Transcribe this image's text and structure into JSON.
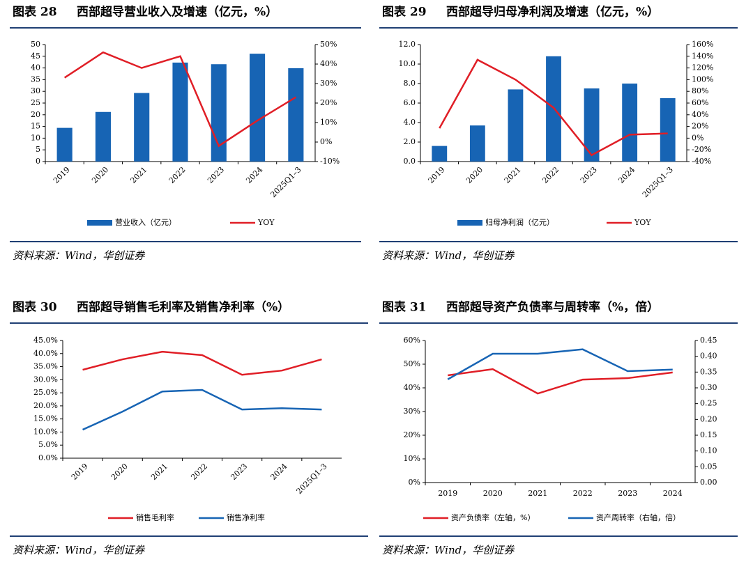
{
  "chart_data": [
    {
      "type": "bar",
      "label": "图表 28",
      "title": "西部超导营业收入及增速（亿元，%）",
      "categories": [
        "2019",
        "2020",
        "2021",
        "2022",
        "2023",
        "2024",
        "2025Q1–3"
      ],
      "series": [
        {
          "name": "营业收入（亿元）",
          "type": "bar",
          "color": "#1764b4",
          "values": [
            14.4,
            21.2,
            29.3,
            42.3,
            41.6,
            46.1,
            39.9
          ]
        },
        {
          "name": "YOY",
          "type": "line",
          "axis": "y2",
          "color": "#e01e26",
          "values": [
            33,
            46,
            38,
            44,
            -2,
            11,
            23
          ]
        }
      ],
      "ylim": [
        0,
        50
      ],
      "yticks": [
        0,
        5,
        10,
        15,
        20,
        25,
        30,
        35,
        40,
        45,
        50
      ],
      "y2lim": [
        -10,
        50
      ],
      "y2ticks": [
        {
          "value": -10,
          "label": "-10%"
        },
        {
          "value": 0,
          "label": "0%"
        },
        {
          "value": 10,
          "label": "10%"
        },
        {
          "value": 20,
          "label": "20%"
        },
        {
          "value": 30,
          "label": "30%"
        },
        {
          "value": 40,
          "label": "40%"
        },
        {
          "value": 50,
          "label": "50%"
        }
      ],
      "source": "资料来源：Wind，华创证券"
    },
    {
      "type": "bar",
      "label": "图表 29",
      "title": "西部超导归母净利润及增速（亿元，%）",
      "categories": [
        "2019",
        "2020",
        "2021",
        "2022",
        "2023",
        "2024",
        "2025Q1–3"
      ],
      "series": [
        {
          "name": "归母净利润（亿元）",
          "type": "bar",
          "color": "#1764b4",
          "values": [
            1.6,
            3.7,
            7.4,
            10.8,
            7.5,
            8.0,
            6.5
          ]
        },
        {
          "name": "YOY",
          "type": "line",
          "axis": "y2",
          "color": "#e01e26",
          "values": [
            17,
            134,
            100,
            52,
            -29,
            6,
            8
          ]
        }
      ],
      "ylim": [
        0,
        12
      ],
      "yticks": [
        {
          "value": 0,
          "label": "0.0"
        },
        {
          "value": 2,
          "label": "2.0"
        },
        {
          "value": 4,
          "label": "4.0"
        },
        {
          "value": 6,
          "label": "6.0"
        },
        {
          "value": 8,
          "label": "8.0"
        },
        {
          "value": 10,
          "label": "10.0"
        },
        {
          "value": 12,
          "label": "12.0"
        }
      ],
      "y2lim": [
        -40,
        160
      ],
      "y2ticks": [
        {
          "value": -40,
          "label": "-40%"
        },
        {
          "value": -20,
          "label": "-20%"
        },
        {
          "value": 0,
          "label": "0%"
        },
        {
          "value": 20,
          "label": "20%"
        },
        {
          "value": 40,
          "label": "40%"
        },
        {
          "value": 60,
          "label": "60%"
        },
        {
          "value": 80,
          "label": "80%"
        },
        {
          "value": 100,
          "label": "100%"
        },
        {
          "value": 120,
          "label": "120%"
        },
        {
          "value": 140,
          "label": "140%"
        },
        {
          "value": 160,
          "label": "160%"
        }
      ],
      "source": "资料来源：Wind，华创证券"
    },
    {
      "type": "line",
      "label": "图表 30",
      "title": "西部超导销售毛利率及销售净利率（%）",
      "categories": [
        "2019",
        "2020",
        "2021",
        "2022",
        "2023",
        "2024",
        "2025Q1–3"
      ],
      "series": [
        {
          "name": "销售毛利率",
          "type": "line",
          "color": "#e01e26",
          "values": [
            33.8,
            37.8,
            40.7,
            39.4,
            31.9,
            33.5,
            37.8
          ]
        },
        {
          "name": "销售净利率",
          "type": "line",
          "color": "#1764b4",
          "values": [
            10.9,
            17.8,
            25.5,
            26.1,
            18.6,
            19.1,
            18.6
          ]
        }
      ],
      "ylim": [
        0,
        45
      ],
      "yticks": [
        {
          "value": 0,
          "label": "0.0%"
        },
        {
          "value": 5,
          "label": "5.0%"
        },
        {
          "value": 10,
          "label": "10.0%"
        },
        {
          "value": 15,
          "label": "15.0%"
        },
        {
          "value": 20,
          "label": "20.0%"
        },
        {
          "value": 25,
          "label": "25.0%"
        },
        {
          "value": 30,
          "label": "30.0%"
        },
        {
          "value": 35,
          "label": "35.0%"
        },
        {
          "value": 40,
          "label": "40.0%"
        },
        {
          "value": 45,
          "label": "45.0%"
        }
      ],
      "source": "资料来源：Wind，华创证券"
    },
    {
      "type": "line",
      "label": "图表 31",
      "title": "西部超导资产负债率与周转率（%，倍）",
      "categories": [
        "2019",
        "2020",
        "2021",
        "2022",
        "2023",
        "2024"
      ],
      "series": [
        {
          "name": "资产负债率（左轴，%）",
          "type": "line",
          "color": "#e01e26",
          "values": [
            45.3,
            47.9,
            37.6,
            43.5,
            44.1,
            46.5
          ]
        },
        {
          "name": "资产周转率（右轴，倍）",
          "type": "line",
          "axis": "y2",
          "color": "#1764b4",
          "values": [
            0.327,
            0.408,
            0.408,
            0.422,
            0.353,
            0.358
          ]
        }
      ],
      "ylim": [
        0,
        60
      ],
      "yticks": [
        {
          "value": 0,
          "label": "0%"
        },
        {
          "value": 10,
          "label": "10%"
        },
        {
          "value": 20,
          "label": "20%"
        },
        {
          "value": 30,
          "label": "30%"
        },
        {
          "value": 40,
          "label": "40%"
        },
        {
          "value": 50,
          "label": "50%"
        },
        {
          "value": 60,
          "label": "60%"
        }
      ],
      "y2lim": [
        0,
        0.45
      ],
      "y2ticks": [
        {
          "value": 0,
          "label": "0.00"
        },
        {
          "value": 0.05,
          "label": "0.05"
        },
        {
          "value": 0.1,
          "label": "0.10"
        },
        {
          "value": 0.15,
          "label": "0.15"
        },
        {
          "value": 0.2,
          "label": "0.20"
        },
        {
          "value": 0.25,
          "label": "0.25"
        },
        {
          "value": 0.3,
          "label": "0.30"
        },
        {
          "value": 0.35,
          "label": "0.35"
        },
        {
          "value": 0.4,
          "label": "0.40"
        },
        {
          "value": 0.45,
          "label": "0.45"
        }
      ],
      "source": "资料来源：Wind，华创证券"
    }
  ]
}
